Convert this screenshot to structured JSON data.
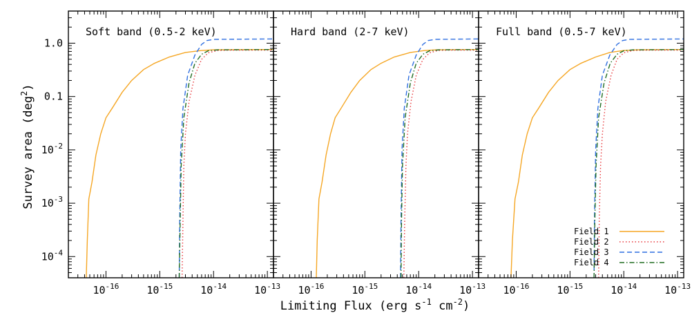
{
  "chart_data": {
    "type": "line",
    "xlabel": "Limiting Flux (erg s$^{-1}$ cm$^{-2}$)",
    "ylabel": "Survey area (deg$^{2}$)",
    "xscale": "log",
    "yscale": "log",
    "xlim": [
      2e-17,
      1.3e-13
    ],
    "ylim": [
      4e-05,
      4
    ],
    "x_ticks": [
      1e-16,
      1e-15,
      1e-14,
      1e-13
    ],
    "x_tick_labels": [
      "10$^{-16}$",
      "10$^{-15}$",
      "10$^{-14}$",
      "10$^{-13}$"
    ],
    "y_ticks": [
      0.0001,
      0.001,
      0.01,
      0.1,
      1.0
    ],
    "y_tick_labels": [
      "10$^{-4}$",
      "10$^{-3}$",
      "10$^{-2}$",
      "0.1",
      "1.0"
    ],
    "legend": {
      "position": "bottom-right",
      "panel": 2,
      "entries": [
        {
          "label": "Field 1",
          "color": "#f5a623",
          "style": "solid"
        },
        {
          "label": "Field 2",
          "color": "#e8373b",
          "style": "dotted"
        },
        {
          "label": "Field 3",
          "color": "#2f6fe0",
          "style": "dashed"
        },
        {
          "label": "Field 4",
          "color": "#1f6b1f",
          "style": "dashdot"
        }
      ]
    },
    "panels": [
      {
        "title": "Soft band (0.5-2 keV)",
        "series": [
          {
            "name": "Field 1",
            "points": [
              [
                4.3e-17,
                4e-05
              ],
              [
                4.5e-17,
                0.0002
              ],
              [
                4.8e-17,
                0.0012
              ],
              [
                5.5e-17,
                0.0025
              ],
              [
                6.5e-17,
                0.008
              ],
              [
                8e-17,
                0.02
              ],
              [
                1e-16,
                0.04
              ],
              [
                1.3e-16,
                0.06
              ],
              [
                2e-16,
                0.12
              ],
              [
                3e-16,
                0.2
              ],
              [
                5e-16,
                0.32
              ],
              [
                8e-16,
                0.42
              ],
              [
                1.5e-15,
                0.55
              ],
              [
                3e-15,
                0.67
              ],
              [
                6e-15,
                0.73
              ],
              [
                1e-14,
                0.75
              ],
              [
                1.3e-13,
                0.76
              ]
            ]
          },
          {
            "name": "Field 2",
            "points": [
              [
                2.6e-15,
                4e-05
              ],
              [
                2.7e-15,
                0.0005
              ],
              [
                2.8e-15,
                0.005
              ],
              [
                3e-15,
                0.02
              ],
              [
                3.5e-15,
                0.08
              ],
              [
                4.5e-15,
                0.25
              ],
              [
                6e-15,
                0.5
              ],
              [
                8e-15,
                0.66
              ],
              [
                1.2e-14,
                0.73
              ],
              [
                2e-14,
                0.74
              ],
              [
                1.3e-13,
                0.74
              ]
            ]
          },
          {
            "name": "Field 3",
            "points": [
              [
                2.3e-15,
                4e-05
              ],
              [
                2.35e-15,
                0.0005
              ],
              [
                2.45e-15,
                0.01
              ],
              [
                2.7e-15,
                0.06
              ],
              [
                3.3e-15,
                0.25
              ],
              [
                4.5e-15,
                0.6
              ],
              [
                6e-15,
                0.95
              ],
              [
                7.5e-15,
                1.12
              ],
              [
                1e-14,
                1.18
              ],
              [
                1.3e-13,
                1.2
              ]
            ]
          },
          {
            "name": "Field 4",
            "points": [
              [
                2.3e-15,
                4e-05
              ],
              [
                2.4e-15,
                0.0005
              ],
              [
                2.5e-15,
                0.005
              ],
              [
                2.8e-15,
                0.04
              ],
              [
                3.5e-15,
                0.18
              ],
              [
                4.5e-15,
                0.42
              ],
              [
                6e-15,
                0.62
              ],
              [
                8e-15,
                0.72
              ],
              [
                1.2e-14,
                0.75
              ],
              [
                1.3e-13,
                0.76
              ]
            ]
          }
        ]
      },
      {
        "title": "Hard band (2-7 keV)",
        "series": [
          {
            "name": "Field 1",
            "points": [
              [
                1.25e-16,
                4e-05
              ],
              [
                1.3e-16,
                0.0002
              ],
              [
                1.4e-16,
                0.0012
              ],
              [
                1.6e-16,
                0.0025
              ],
              [
                1.9e-16,
                0.008
              ],
              [
                2.3e-16,
                0.02
              ],
              [
                2.8e-16,
                0.04
              ],
              [
                3.6e-16,
                0.06
              ],
              [
                5.5e-16,
                0.12
              ],
              [
                8e-16,
                0.2
              ],
              [
                1.3e-15,
                0.32
              ],
              [
                2e-15,
                0.42
              ],
              [
                3.5e-15,
                0.55
              ],
              [
                7e-15,
                0.67
              ],
              [
                1.3e-14,
                0.73
              ],
              [
                2.2e-14,
                0.75
              ],
              [
                1.3e-13,
                0.76
              ]
            ]
          },
          {
            "name": "Field 2",
            "points": [
              [
                5.3e-15,
                4e-05
              ],
              [
                5.5e-15,
                0.0005
              ],
              [
                5.8e-15,
                0.005
              ],
              [
                6.2e-15,
                0.02
              ],
              [
                7.2e-15,
                0.08
              ],
              [
                9e-15,
                0.25
              ],
              [
                1.2e-14,
                0.5
              ],
              [
                1.6e-14,
                0.66
              ],
              [
                2.3e-14,
                0.73
              ],
              [
                3.5e-14,
                0.74
              ],
              [
                1.3e-13,
                0.74
              ]
            ]
          },
          {
            "name": "Field 3",
            "points": [
              [
                4.6e-15,
                4e-05
              ],
              [
                4.7e-15,
                0.0005
              ],
              [
                4.9e-15,
                0.01
              ],
              [
                5.4e-15,
                0.06
              ],
              [
                6.6e-15,
                0.25
              ],
              [
                9e-15,
                0.6
              ],
              [
                1.2e-14,
                0.95
              ],
              [
                1.5e-14,
                1.12
              ],
              [
                2e-14,
                1.18
              ],
              [
                1.3e-13,
                1.2
              ]
            ]
          },
          {
            "name": "Field 4",
            "points": [
              [
                4.7e-15,
                4e-05
              ],
              [
                4.8e-15,
                0.0005
              ],
              [
                5e-15,
                0.005
              ],
              [
                5.6e-15,
                0.04
              ],
              [
                7e-15,
                0.18
              ],
              [
                9e-15,
                0.42
              ],
              [
                1.2e-14,
                0.62
              ],
              [
                1.6e-14,
                0.72
              ],
              [
                2.4e-14,
                0.75
              ],
              [
                1.3e-13,
                0.76
              ]
            ]
          }
        ]
      },
      {
        "title": "Full band (0.5-7 keV)",
        "series": [
          {
            "name": "Field 1",
            "points": [
              [
                8e-17,
                4e-05
              ],
              [
                8.5e-17,
                0.0002
              ],
              [
                9.5e-17,
                0.0012
              ],
              [
                1.1e-16,
                0.0025
              ],
              [
                1.3e-16,
                0.008
              ],
              [
                1.6e-16,
                0.02
              ],
              [
                2e-16,
                0.04
              ],
              [
                2.6e-16,
                0.06
              ],
              [
                4e-16,
                0.12
              ],
              [
                6e-16,
                0.2
              ],
              [
                1e-15,
                0.32
              ],
              [
                1.6e-15,
                0.42
              ],
              [
                3e-15,
                0.55
              ],
              [
                5.5e-15,
                0.67
              ],
              [
                1e-14,
                0.73
              ],
              [
                1.8e-14,
                0.75
              ],
              [
                1.3e-13,
                0.76
              ]
            ]
          },
          {
            "name": "Field 2",
            "points": [
              [
                3.4e-15,
                4e-05
              ],
              [
                3.5e-15,
                0.0005
              ],
              [
                3.7e-15,
                0.005
              ],
              [
                4e-15,
                0.02
              ],
              [
                4.6e-15,
                0.08
              ],
              [
                5.8e-15,
                0.25
              ],
              [
                7.5e-15,
                0.5
              ],
              [
                1e-14,
                0.66
              ],
              [
                1.5e-14,
                0.73
              ],
              [
                2.5e-14,
                0.74
              ],
              [
                1.3e-13,
                0.74
              ]
            ]
          },
          {
            "name": "Field 3",
            "points": [
              [
                2.8e-15,
                4e-05
              ],
              [
                2.85e-15,
                0.0005
              ],
              [
                3e-15,
                0.01
              ],
              [
                3.3e-15,
                0.06
              ],
              [
                4e-15,
                0.25
              ],
              [
                5.5e-15,
                0.6
              ],
              [
                7.5e-15,
                0.95
              ],
              [
                9.5e-15,
                1.12
              ],
              [
                1.3e-14,
                1.18
              ],
              [
                1.3e-13,
                1.2
              ]
            ]
          },
          {
            "name": "Field 4",
            "points": [
              [
                2.8e-15,
                4e-05
              ],
              [
                2.9e-15,
                0.0005
              ],
              [
                3.05e-15,
                0.005
              ],
              [
                3.4e-15,
                0.04
              ],
              [
                4.3e-15,
                0.18
              ],
              [
                5.6e-15,
                0.42
              ],
              [
                7.5e-15,
                0.62
              ],
              [
                1e-14,
                0.72
              ],
              [
                1.5e-14,
                0.75
              ],
              [
                1.3e-13,
                0.76
              ]
            ]
          }
        ]
      }
    ]
  }
}
